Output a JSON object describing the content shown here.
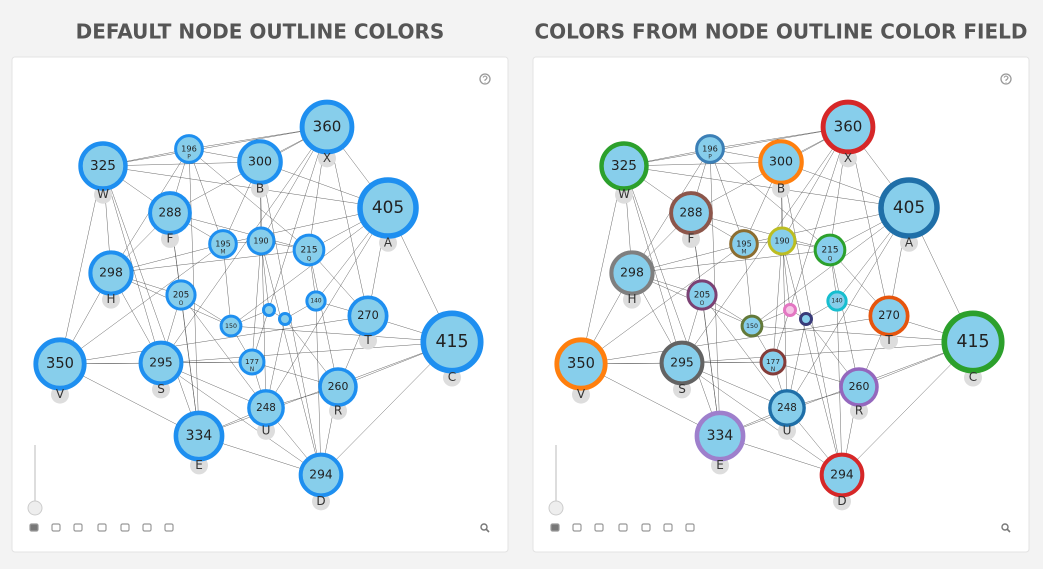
{
  "panels": [
    {
      "title": "DEFAULT NODE OUTLINE COLORS",
      "outline_color": "#1e8ff0",
      "nodes": [
        {
          "value": 360,
          "letter": "X"
        },
        {
          "value": 196,
          "letter": "P"
        },
        {
          "value": 300,
          "letter": "B"
        },
        {
          "value": 325,
          "letter": "W"
        },
        {
          "value": 405,
          "letter": "A"
        },
        {
          "value": 288,
          "letter": "F"
        },
        {
          "value": 195,
          "letter": "M"
        },
        {
          "value": 190
        },
        {
          "value": 215,
          "letter": "Q"
        },
        {
          "value": 298,
          "letter": "H"
        },
        {
          "value": 205,
          "letter": "O"
        },
        {
          "value": 140
        },
        {
          "value": 150
        },
        {
          "value": 270,
          "letter": "T"
        },
        {
          "value": 415,
          "letter": "C"
        },
        {
          "value": 350,
          "letter": "V"
        },
        {
          "value": 295,
          "letter": "S"
        },
        {
          "value": 177,
          "letter": "N"
        },
        {
          "value": 260,
          "letter": "R"
        },
        {
          "value": 248,
          "letter": "U"
        },
        {
          "value": 334,
          "letter": "E"
        },
        {
          "value": 294,
          "letter": "D"
        }
      ]
    },
    {
      "title": "COLORS FROM NODE OUTLINE COLOR FIELD",
      "unlabeled_node_colors": [
        "#e377c2",
        "#393b79"
      ],
      "nodes": [
        {
          "value": 360,
          "letter": "X",
          "outline_color": "#d62728"
        },
        {
          "value": 196,
          "letter": "P",
          "outline_color": "#3b7fb6"
        },
        {
          "value": 300,
          "letter": "B",
          "outline_color": "#ff7f0e"
        },
        {
          "value": 325,
          "letter": "W",
          "outline_color": "#2ca02c"
        },
        {
          "value": 405,
          "letter": "A",
          "outline_color": "#1f6fa8"
        },
        {
          "value": 288,
          "letter": "F",
          "outline_color": "#8c564b"
        },
        {
          "value": 195,
          "letter": "M",
          "outline_color": "#8c6d31"
        },
        {
          "value": 190,
          "outline_color": "#bcbd22"
        },
        {
          "value": 215,
          "letter": "Q",
          "outline_color": "#2ca02c"
        },
        {
          "value": 298,
          "letter": "H",
          "outline_color": "#7f7f7f"
        },
        {
          "value": 205,
          "letter": "O",
          "outline_color": "#7b4173"
        },
        {
          "value": 140,
          "outline_color": "#17becf"
        },
        {
          "value": 150,
          "outline_color": "#637939"
        },
        {
          "value": 270,
          "letter": "T",
          "outline_color": "#e6550d"
        },
        {
          "value": 415,
          "letter": "C",
          "outline_color": "#2ca02c"
        },
        {
          "value": 350,
          "letter": "V",
          "outline_color": "#ff7f0e"
        },
        {
          "value": 295,
          "letter": "S",
          "outline_color": "#636363"
        },
        {
          "value": 177,
          "letter": "N",
          "outline_color": "#843c39"
        },
        {
          "value": 260,
          "letter": "R",
          "outline_color": "#9467bd"
        },
        {
          "value": 248,
          "letter": "U",
          "outline_color": "#1f6fa8"
        },
        {
          "value": 334,
          "letter": "E",
          "outline_color": "#9e7fcc"
        },
        {
          "value": 294,
          "letter": "D",
          "outline_color": "#d62728"
        }
      ]
    }
  ]
}
